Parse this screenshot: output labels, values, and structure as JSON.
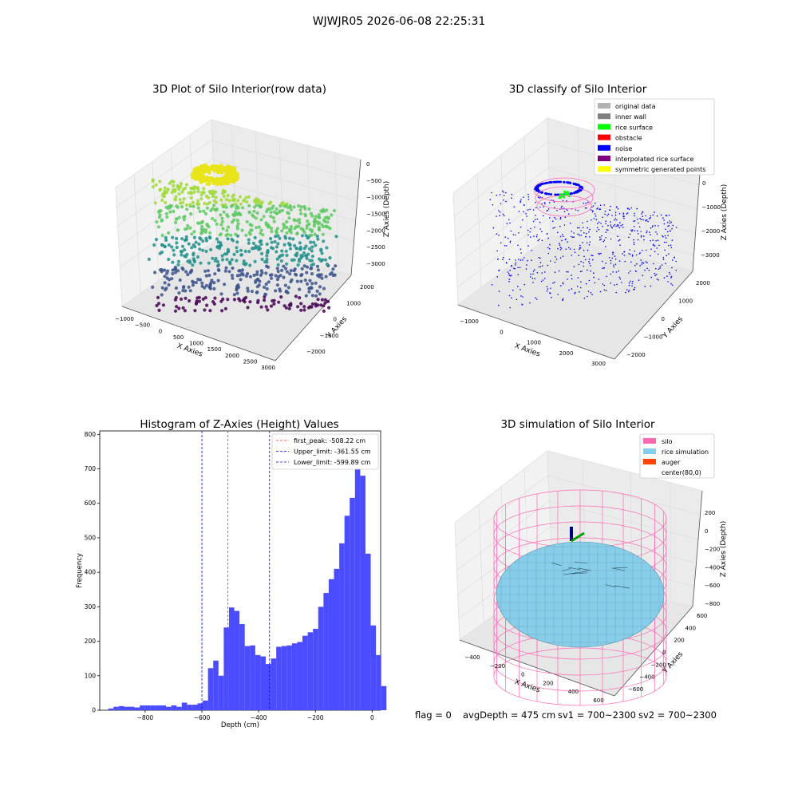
{
  "figure": {
    "suptitle": "WJWJR05 2026-06-08 22:25:31",
    "status_line": {
      "flag": "flag = 0",
      "avg_depth": "avgDepth = 475 cm",
      "sv1": "sv1 = 700~2300",
      "sv2": "sv2 = 700~2300"
    }
  },
  "colors": {
    "hist_bar": "#4c4cff",
    "first_peak": "#ff2a2a",
    "limit": "#0000ff",
    "silo": "#ff69b4",
    "rice_simulation": "#87ceeb",
    "auger": "#ff4500",
    "noise": "#0000ff",
    "rice_surface": "#00ff00",
    "original_data": "#b3b3b3",
    "inner_wall": "#808080",
    "obstacle": "#ff0000",
    "interpolated_rice_surface": "#800080",
    "symmetric_generated_points": "#ffff00"
  },
  "chart_data": [
    {
      "type": "scatter",
      "projection": "3d",
      "title": "3D Plot of Silo Interior(row data)",
      "xlabel": "X Axies",
      "ylabel": "Y Axies",
      "zlabel": "Z Axies (Depth)",
      "xticks": [
        "−1000",
        "−500",
        "0",
        "500",
        "1000",
        "1500",
        "2000",
        "2500",
        "3000"
      ],
      "yticks": [
        "2000",
        "1000",
        "0",
        "−1000",
        "−2000"
      ],
      "zticks": [
        "0",
        "−500",
        "−1000",
        "−1500",
        "−2000",
        "−2500",
        "−3000"
      ],
      "xlim": [
        -1000,
        3000
      ],
      "ylim": [
        -2000,
        2000
      ],
      "zlim": [
        -3200,
        0
      ],
      "colormap": "viridis",
      "grid": true
    },
    {
      "type": "scatter",
      "projection": "3d",
      "title": "3D classify of Silo Interior",
      "xlabel": "X Axies",
      "ylabel": "Y Axies",
      "zlabel": "Z Axies (Depth)",
      "xticks": [
        "−1000",
        "0",
        "1000",
        "2000",
        "3000"
      ],
      "yticks": [
        "2000",
        "1000",
        "0",
        "−1000",
        "−2000"
      ],
      "zticks": [
        "0",
        "−1000",
        "−2000",
        "−3000"
      ],
      "legend_position": "top-right",
      "legend": [
        {
          "label": "original data",
          "color": "#b3b3b3"
        },
        {
          "label": "inner wall",
          "color": "#808080"
        },
        {
          "label": "rice surface",
          "color": "#00ff00"
        },
        {
          "label": "obstacle",
          "color": "#ff0000"
        },
        {
          "label": "noise",
          "color": "#0000ff"
        },
        {
          "label": "interpolated rice surface",
          "color": "#800080"
        },
        {
          "label": "symmetric generated points",
          "color": "#ffff00"
        }
      ],
      "grid": true
    },
    {
      "type": "bar",
      "title": "Histogram of Z-Axies (Height) Values",
      "xlabel": "Depth (cm)",
      "ylabel": "Frequency",
      "xlim": [
        -960,
        30
      ],
      "ylim": [
        0,
        810
      ],
      "xticks": [
        -800,
        -600,
        -400,
        -200,
        0
      ],
      "xtick_labels": [
        "−800",
        "−600",
        "−400",
        "−200",
        "0"
      ],
      "yticks": [
        0,
        100,
        200,
        300,
        400,
        500,
        600,
        700,
        800
      ],
      "bin_start": -930,
      "bin_width": 18.5,
      "values": [
        5,
        10,
        12,
        10,
        10,
        8,
        14,
        14,
        14,
        14,
        14,
        10,
        14,
        10,
        22,
        16,
        16,
        20,
        28,
        122,
        144,
        100,
        240,
        298,
        288,
        250,
        186,
        188,
        160,
        156,
        134,
        150,
        184,
        186,
        188,
        194,
        198,
        216,
        226,
        236,
        300,
        340,
        380,
        410,
        484,
        564,
        616,
        740,
        680,
        454,
        246,
        160,
        70
      ],
      "vlines": [
        {
          "label": "first_peak: -508.22 cm",
          "x": -508.22,
          "color": "#ff2a2a"
        },
        {
          "label": "Upper_limit: -361.55 cm",
          "x": -361.55,
          "color": "#0000ff"
        },
        {
          "label": "Lower_limit: -599.89 cm",
          "x": -599.89,
          "color": "#0000ff"
        }
      ],
      "legend_position": "top-right"
    },
    {
      "type": "surface",
      "projection": "3d",
      "title": "3D simulation of Silo Interior",
      "xlabel": "X Axies",
      "ylabel": "Y Axies",
      "zlabel": "Z Axies (Depth)",
      "xticks": [
        "−400",
        "−200",
        "0",
        "200",
        "400",
        "600"
      ],
      "yticks": [
        "600",
        "400",
        "200",
        "0",
        "−200",
        "−400",
        "−600"
      ],
      "zticks": [
        "200",
        "0",
        "−200",
        "−400",
        "−600",
        "−800"
      ],
      "legend_position": "top-right",
      "legend": [
        {
          "label": "silo",
          "color": "#ff69b4"
        },
        {
          "label": "rice simulation",
          "color": "#87ceeb"
        },
        {
          "label": "auger",
          "color": "#ff4500"
        },
        {
          "label": "center(80,0)",
          "color": ""
        }
      ],
      "grid": true
    }
  ]
}
